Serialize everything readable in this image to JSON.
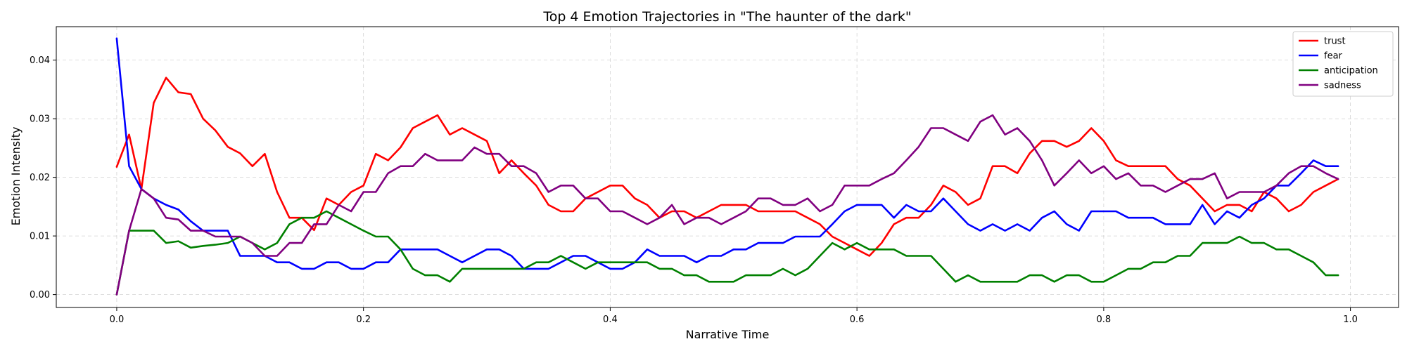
{
  "chart_data": {
    "type": "line",
    "title": "Top 4 Emotion Trajectories in \"The haunter of the dark\"",
    "xlabel": "Narrative Time",
    "ylabel": "Emotion Intensity",
    "xlim": [
      -0.049,
      1.039
    ],
    "ylim": [
      -0.0022,
      0.0457
    ],
    "xticks": [
      0.0,
      0.2,
      0.4,
      0.6,
      0.8,
      1.0
    ],
    "xtick_labels": [
      "0.0",
      "0.2",
      "0.4",
      "0.6",
      "0.8",
      "1.0"
    ],
    "yticks": [
      0.0,
      0.01,
      0.02,
      0.03,
      0.04
    ],
    "ytick_labels": [
      "0.00",
      "0.01",
      "0.02",
      "0.03",
      "0.04"
    ],
    "grid": true,
    "legend_position": "top-right",
    "x": [
      0.0,
      0.01,
      0.02,
      0.03,
      0.04,
      0.05,
      0.06,
      0.07,
      0.08,
      0.09,
      0.1,
      0.11,
      0.12,
      0.13,
      0.14,
      0.15,
      0.16,
      0.17,
      0.18,
      0.19,
      0.2,
      0.21,
      0.22,
      0.23,
      0.24,
      0.25,
      0.26,
      0.27,
      0.28,
      0.29,
      0.3,
      0.31,
      0.32,
      0.33,
      0.34,
      0.35,
      0.36,
      0.37,
      0.38,
      0.39,
      0.4,
      0.41,
      0.42,
      0.43,
      0.44,
      0.45,
      0.46,
      0.47,
      0.48,
      0.49,
      0.5,
      0.51,
      0.52,
      0.53,
      0.54,
      0.55,
      0.56,
      0.57,
      0.58,
      0.59,
      0.6,
      0.61,
      0.62,
      0.63,
      0.64,
      0.65,
      0.66,
      0.67,
      0.68,
      0.69,
      0.7,
      0.71,
      0.72,
      0.73,
      0.74,
      0.75,
      0.76,
      0.77,
      0.78,
      0.79,
      0.8,
      0.81,
      0.82,
      0.83,
      0.84,
      0.85,
      0.86,
      0.87,
      0.88,
      0.89,
      0.9,
      0.91,
      0.92,
      0.93,
      0.94,
      0.95,
      0.96,
      0.97,
      0.98,
      0.99
    ],
    "series": [
      {
        "name": "trust",
        "color": "#ff0000",
        "values": [
          0.0218,
          0.0273,
          0.018,
          0.0327,
          0.037,
          0.0345,
          0.0342,
          0.03,
          0.028,
          0.0252,
          0.0241,
          0.0219,
          0.024,
          0.0175,
          0.0131,
          0.0131,
          0.011,
          0.0164,
          0.0153,
          0.0175,
          0.0186,
          0.024,
          0.0229,
          0.0251,
          0.0284,
          0.0295,
          0.0306,
          0.0273,
          0.0284,
          0.0273,
          0.0262,
          0.0207,
          0.0229,
          0.0207,
          0.0186,
          0.0153,
          0.0142,
          0.0142,
          0.0164,
          0.0175,
          0.0186,
          0.0186,
          0.0164,
          0.0153,
          0.0131,
          0.0142,
          0.0142,
          0.0131,
          0.0142,
          0.0153,
          0.0153,
          0.0153,
          0.0142,
          0.0142,
          0.0142,
          0.0142,
          0.0131,
          0.012,
          0.0099,
          0.0088,
          0.0077,
          0.0066,
          0.0088,
          0.012,
          0.0131,
          0.0131,
          0.0153,
          0.0186,
          0.0175,
          0.0153,
          0.0164,
          0.0219,
          0.0219,
          0.0207,
          0.0241,
          0.0262,
          0.0262,
          0.0252,
          0.0262,
          0.0284,
          0.0262,
          0.0229,
          0.0219,
          0.0219,
          0.0219,
          0.0219,
          0.0197,
          0.0186,
          0.0164,
          0.0142,
          0.0153,
          0.0153,
          0.0142,
          0.0175,
          0.0164,
          0.0142,
          0.0153,
          0.0175,
          0.0186,
          0.0197
        ]
      },
      {
        "name": "fear",
        "color": "#0000ff",
        "values": [
          0.0437,
          0.0219,
          0.018,
          0.0164,
          0.0153,
          0.0145,
          0.0125,
          0.0109,
          0.0109,
          0.0109,
          0.0066,
          0.0066,
          0.0066,
          0.0055,
          0.0055,
          0.0044,
          0.0044,
          0.0055,
          0.0055,
          0.0044,
          0.0044,
          0.0055,
          0.0055,
          0.0077,
          0.0077,
          0.0077,
          0.0077,
          0.0066,
          0.0055,
          0.0066,
          0.0077,
          0.0077,
          0.0066,
          0.0044,
          0.0044,
          0.0044,
          0.0055,
          0.0066,
          0.0066,
          0.0055,
          0.0044,
          0.0044,
          0.0055,
          0.0077,
          0.0066,
          0.0066,
          0.0066,
          0.0055,
          0.0066,
          0.0066,
          0.0077,
          0.0077,
          0.0088,
          0.0088,
          0.0088,
          0.0099,
          0.0099,
          0.0099,
          0.012,
          0.0142,
          0.0153,
          0.0153,
          0.0153,
          0.0131,
          0.0153,
          0.0142,
          0.0142,
          0.0164,
          0.0142,
          0.012,
          0.0109,
          0.012,
          0.0109,
          0.012,
          0.0109,
          0.0131,
          0.0142,
          0.012,
          0.0109,
          0.0142,
          0.0142,
          0.0142,
          0.0131,
          0.0131,
          0.0131,
          0.012,
          0.012,
          0.012,
          0.0153,
          0.012,
          0.0142,
          0.0131,
          0.0153,
          0.0164,
          0.0186,
          0.0186,
          0.0207,
          0.0229,
          0.0219,
          0.0219
        ]
      },
      {
        "name": "anticipation",
        "color": "#008000",
        "values": [
          0.0,
          0.0109,
          0.0109,
          0.0109,
          0.0088,
          0.0091,
          0.008,
          0.0083,
          0.0085,
          0.0088,
          0.0099,
          0.0088,
          0.0077,
          0.0088,
          0.012,
          0.0131,
          0.0131,
          0.0142,
          0.0131,
          0.012,
          0.0109,
          0.0099,
          0.0099,
          0.0077,
          0.0044,
          0.0033,
          0.0033,
          0.0022,
          0.0044,
          0.0044,
          0.0044,
          0.0044,
          0.0044,
          0.0044,
          0.0055,
          0.0055,
          0.0066,
          0.0055,
          0.0044,
          0.0055,
          0.0055,
          0.0055,
          0.0055,
          0.0055,
          0.0044,
          0.0044,
          0.0033,
          0.0033,
          0.0022,
          0.0022,
          0.0022,
          0.0033,
          0.0033,
          0.0033,
          0.0044,
          0.0033,
          0.0044,
          0.0066,
          0.0088,
          0.0077,
          0.0088,
          0.0077,
          0.0077,
          0.0077,
          0.0066,
          0.0066,
          0.0066,
          0.0044,
          0.0022,
          0.0033,
          0.0022,
          0.0022,
          0.0022,
          0.0022,
          0.0033,
          0.0033,
          0.0022,
          0.0033,
          0.0033,
          0.0022,
          0.0022,
          0.0033,
          0.0044,
          0.0044,
          0.0055,
          0.0055,
          0.0066,
          0.0066,
          0.0088,
          0.0088,
          0.0088,
          0.0099,
          0.0088,
          0.0088,
          0.0077,
          0.0077,
          0.0066,
          0.0055,
          0.0033,
          0.0033
        ]
      },
      {
        "name": "sadness",
        "color": "#800080",
        "values": [
          0.0,
          0.0109,
          0.018,
          0.0164,
          0.0131,
          0.0128,
          0.0109,
          0.0109,
          0.0099,
          0.0099,
          0.0099,
          0.0088,
          0.0066,
          0.0066,
          0.0088,
          0.0088,
          0.012,
          0.012,
          0.0153,
          0.0142,
          0.0175,
          0.0175,
          0.0207,
          0.0219,
          0.0219,
          0.024,
          0.0229,
          0.0229,
          0.0229,
          0.0251,
          0.024,
          0.024,
          0.0219,
          0.0219,
          0.0207,
          0.0175,
          0.0186,
          0.0186,
          0.0164,
          0.0164,
          0.0142,
          0.0142,
          0.0131,
          0.012,
          0.0131,
          0.0153,
          0.012,
          0.0131,
          0.0131,
          0.012,
          0.0131,
          0.0142,
          0.0164,
          0.0164,
          0.0153,
          0.0153,
          0.0164,
          0.0142,
          0.0153,
          0.0186,
          0.0186,
          0.0186,
          0.0197,
          0.0207,
          0.0229,
          0.0252,
          0.0284,
          0.0284,
          0.0273,
          0.0262,
          0.0295,
          0.0306,
          0.0273,
          0.0284,
          0.0262,
          0.0229,
          0.0186,
          0.0207,
          0.0229,
          0.0207,
          0.0219,
          0.0197,
          0.0207,
          0.0186,
          0.0186,
          0.0175,
          0.0186,
          0.0197,
          0.0197,
          0.0207,
          0.0164,
          0.0175,
          0.0175,
          0.0175,
          0.0186,
          0.0207,
          0.0219,
          0.0219,
          0.0207,
          0.0197
        ]
      }
    ]
  }
}
